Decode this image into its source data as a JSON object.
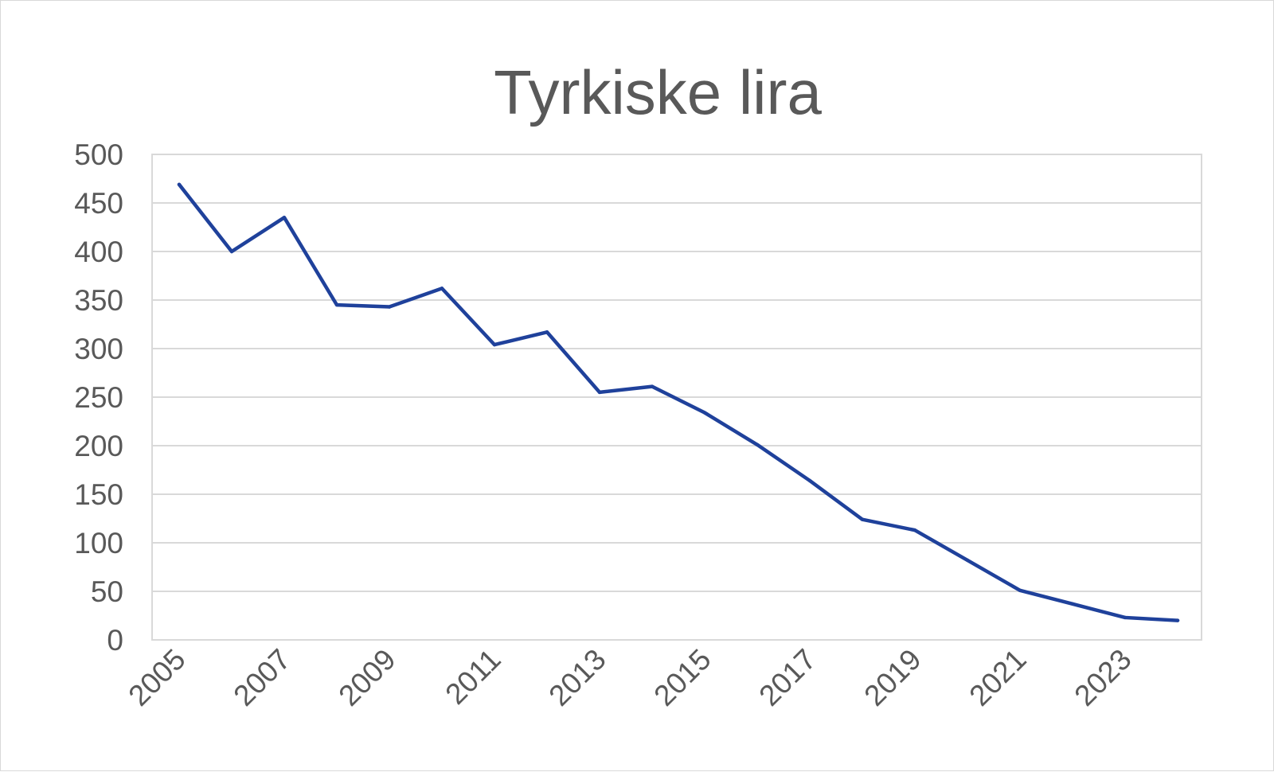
{
  "chart_data": {
    "type": "line",
    "title": "Tyrkiske lira",
    "xlabel": "",
    "ylabel": "",
    "x": [
      2005,
      2006,
      2007,
      2008,
      2009,
      2010,
      2011,
      2012,
      2013,
      2014,
      2015,
      2016,
      2017,
      2018,
      2019,
      2020,
      2021,
      2022,
      2023,
      2024
    ],
    "x_tick_labels": [
      "2005",
      "2007",
      "2009",
      "2011",
      "2013",
      "2015",
      "2017",
      "2019",
      "2021",
      "2023"
    ],
    "y_tick_labels": [
      "500",
      "450",
      "400",
      "350",
      "300",
      "250",
      "200",
      "150",
      "100",
      "50",
      "0"
    ],
    "ylim": [
      0,
      500
    ],
    "grid": true,
    "series": [
      {
        "values": [
          469,
          400,
          435,
          345,
          343,
          362,
          304,
          317,
          255,
          261,
          234,
          201,
          164,
          124,
          113,
          82,
          51,
          37,
          23,
          20
        ],
        "color": "#1f419b"
      }
    ]
  }
}
